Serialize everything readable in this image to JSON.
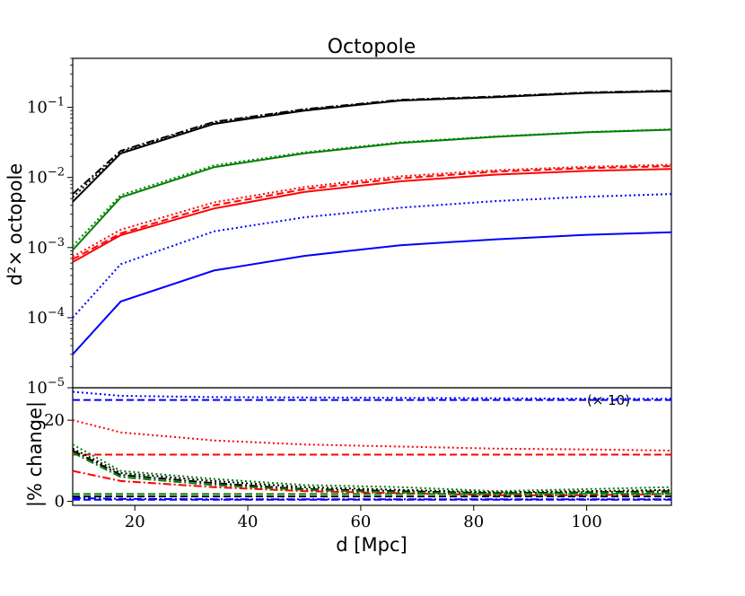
{
  "chart_data": [
    {
      "type": "line",
      "title": "Octopole",
      "xlabel": "",
      "ylabel": "d²× octopole",
      "yscale": "log",
      "xlim": [
        9,
        115
      ],
      "ylim": [
        1e-05,
        0.5
      ],
      "yticks": [
        {
          "value": 0.1,
          "base": "10",
          "exp": "−1"
        },
        {
          "value": 0.01,
          "base": "10",
          "exp": "−2"
        },
        {
          "value": 0.001,
          "base": "10",
          "exp": "−3"
        },
        {
          "value": 0.0001,
          "base": "10",
          "exp": "−4"
        },
        {
          "value": 1e-05,
          "base": "10",
          "exp": "−5"
        }
      ],
      "x": [
        9,
        17.5,
        34,
        50,
        67,
        84,
        100,
        115
      ],
      "series": [
        {
          "name": "black solid",
          "color": "#000000",
          "dash": "solid",
          "values": [
            0.0045,
            0.022,
            0.058,
            0.09,
            0.125,
            0.14,
            0.16,
            0.17
          ]
        },
        {
          "name": "black dashdot",
          "color": "#000000",
          "dash": "dashdot",
          "values": [
            0.0058,
            0.024,
            0.062,
            0.094,
            0.128,
            0.143,
            0.163,
            0.173
          ]
        },
        {
          "name": "black dotted",
          "color": "#000000",
          "dash": "dotted",
          "values": [
            0.0052,
            0.023,
            0.06,
            0.092,
            0.126,
            0.141,
            0.161,
            0.171
          ]
        },
        {
          "name": "green solid",
          "color": "#008000",
          "dash": "solid",
          "values": [
            0.00092,
            0.0052,
            0.014,
            0.022,
            0.031,
            0.038,
            0.044,
            0.048
          ]
        },
        {
          "name": "green dotted",
          "color": "#008000",
          "dash": "dotted",
          "values": [
            0.00105,
            0.0056,
            0.0148,
            0.0228,
            0.0318,
            0.0386,
            0.0445,
            0.0485
          ]
        },
        {
          "name": "red solid",
          "color": "#ff0000",
          "dash": "solid",
          "values": [
            0.00062,
            0.0015,
            0.0036,
            0.0062,
            0.0088,
            0.011,
            0.0124,
            0.0132
          ]
        },
        {
          "name": "red dashed",
          "color": "#ff0000",
          "dash": "dashed",
          "values": [
            0.00068,
            0.0016,
            0.004,
            0.0068,
            0.0097,
            0.0121,
            0.0136,
            0.0145
          ]
        },
        {
          "name": "red dotted",
          "color": "#ff0000",
          "dash": "dotted",
          "values": [
            0.00074,
            0.0018,
            0.0044,
            0.0073,
            0.0104,
            0.0127,
            0.0142,
            0.0152
          ]
        },
        {
          "name": "blue dotted",
          "color": "#0000ff",
          "dash": "dotted",
          "values": [
            0.0001,
            0.00058,
            0.0017,
            0.0027,
            0.0037,
            0.0046,
            0.0053,
            0.0058
          ]
        },
        {
          "name": "blue solid",
          "color": "#0000ff",
          "dash": "solid",
          "values": [
            3e-05,
            0.00017,
            0.00047,
            0.00076,
            0.00108,
            0.00131,
            0.00152,
            0.00165
          ]
        }
      ]
    },
    {
      "type": "line",
      "title": "",
      "xlabel": "d [Mpc]",
      "ylabel": "|% change|",
      "xlim": [
        9,
        115
      ],
      "ylim": [
        -1,
        28
      ],
      "xticks": [
        20,
        40,
        60,
        80,
        100
      ],
      "yticks": [
        0,
        20
      ],
      "annotation": "(× 10)",
      "x": [
        9,
        17.5,
        34,
        50,
        67,
        84,
        100,
        115
      ],
      "series": [
        {
          "name": "blue dotted",
          "color": "#0000ff",
          "dash": "dotted",
          "values": [
            27,
            26,
            25.7,
            25.6,
            25.5,
            25.4,
            25.3,
            25.3
          ]
        },
        {
          "name": "blue dashed",
          "color": "#0000ff",
          "dash": "dashed",
          "values": [
            25,
            25,
            25,
            25,
            25,
            25,
            25,
            25
          ]
        },
        {
          "name": "red dotted",
          "color": "#ff0000",
          "dash": "dotted",
          "values": [
            20,
            17,
            15,
            14,
            13.5,
            13,
            12.8,
            12.5
          ]
        },
        {
          "name": "red dashed",
          "color": "#ff0000",
          "dash": "dashed",
          "values": [
            11.5,
            11.5,
            11.5,
            11.5,
            11.5,
            11.5,
            11.5,
            11.5
          ]
        },
        {
          "name": "green dotted",
          "color": "#008000",
          "dash": "dotted",
          "values": [
            14,
            7.5,
            5.5,
            4,
            3.5,
            2.5,
            3,
            3.5
          ]
        },
        {
          "name": "black dotted",
          "color": "#000000",
          "dash": "dotted",
          "values": [
            13,
            7,
            5,
            3.5,
            2.8,
            2.2,
            2.5,
            2.8
          ]
        },
        {
          "name": "black dashdot",
          "color": "#000000",
          "dash": "dashdot",
          "values": [
            12.5,
            6.5,
            4.5,
            3,
            2.5,
            2,
            2.2,
            2.5
          ]
        },
        {
          "name": "green dashdot",
          "color": "#008000",
          "dash": "dashdot",
          "values": [
            12,
            6,
            4,
            2.8,
            2.2,
            1.8,
            2,
            2.2
          ]
        },
        {
          "name": "red dashdot",
          "color": "#ff0000",
          "dash": "dashdot",
          "values": [
            7.5,
            5,
            3.5,
            2.5,
            2,
            1.5,
            1.5,
            1.8
          ]
        },
        {
          "name": "green dashed",
          "color": "#008000",
          "dash": "dashed",
          "values": [
            1.8,
            1.8,
            1.8,
            1.8,
            1.8,
            1.8,
            1.8,
            1.8
          ]
        },
        {
          "name": "black dashed",
          "color": "#000000",
          "dash": "dashed",
          "values": [
            1.2,
            1.2,
            1.2,
            1.2,
            1.2,
            1.2,
            1.2,
            1.2
          ]
        },
        {
          "name": "blue dashdot",
          "color": "#0000ff",
          "dash": "dashdot",
          "values": [
            0.8,
            0.6,
            0.5,
            0.5,
            0.5,
            0.5,
            0.5,
            0.5
          ]
        },
        {
          "name": "blue dashed low",
          "color": "#0000ff",
          "dash": "dashed",
          "values": [
            0.4,
            0.4,
            0.4,
            0.4,
            0.4,
            0.4,
            0.4,
            0.4
          ]
        }
      ]
    }
  ]
}
